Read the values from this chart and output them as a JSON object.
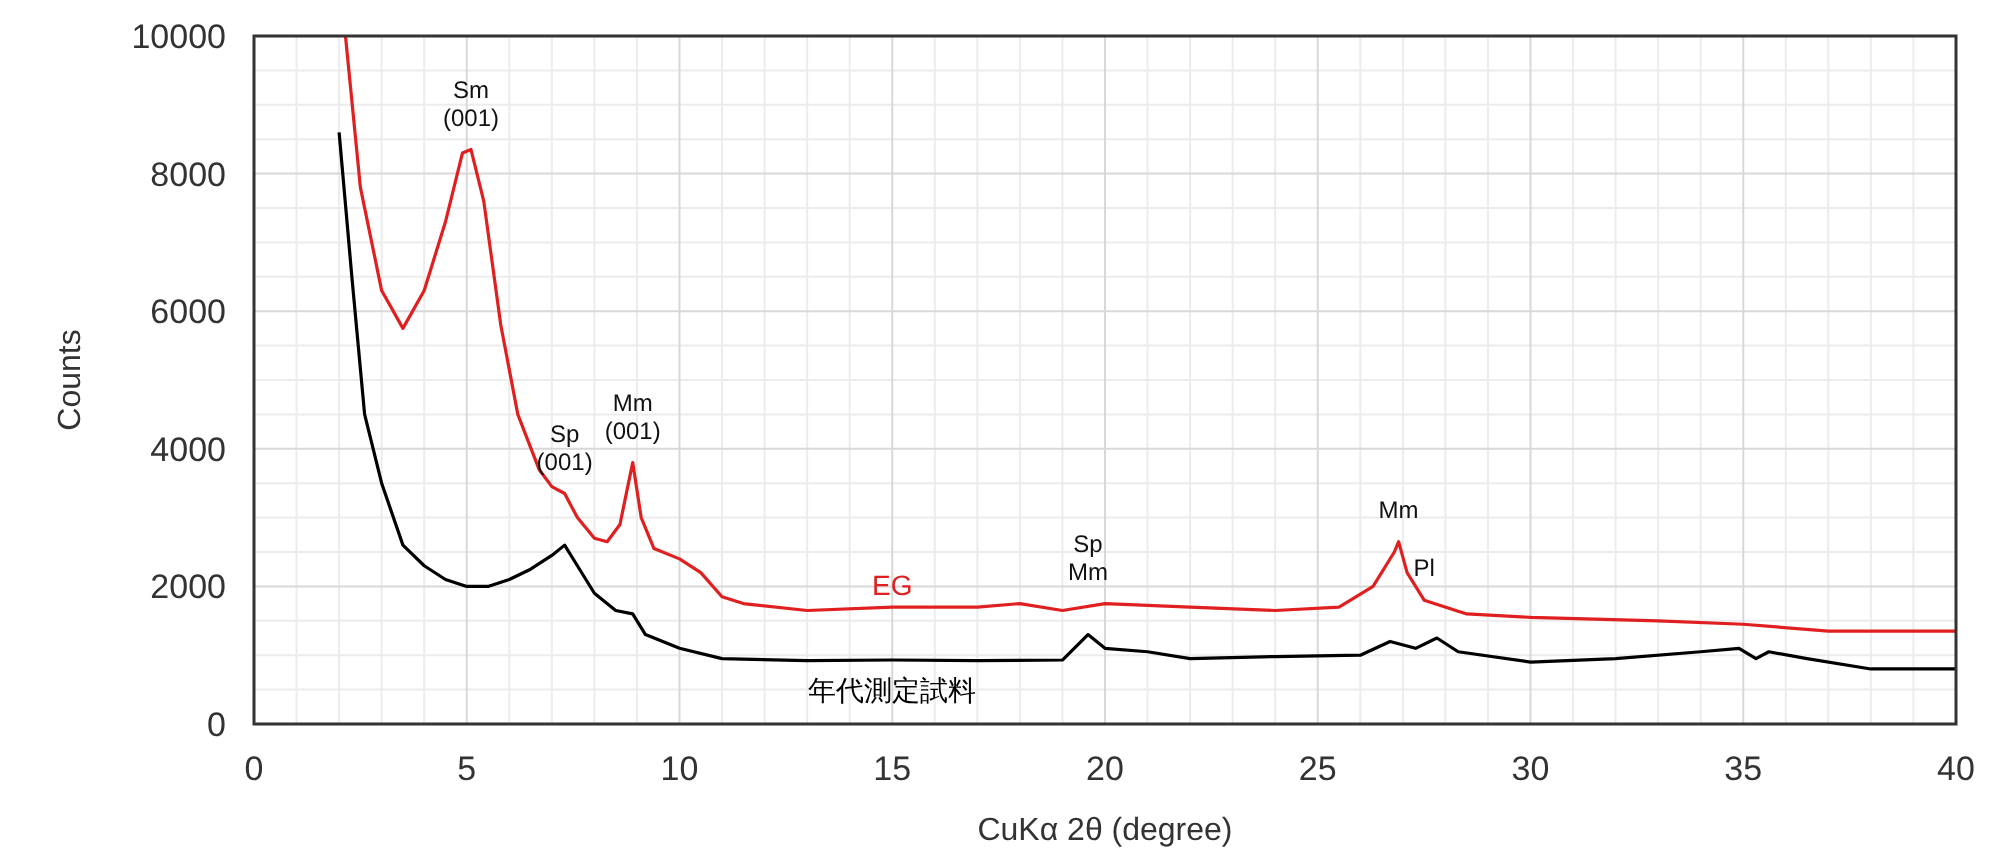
{
  "chart_data": {
    "type": "line",
    "xlabel": "CuKα 2θ (degree)",
    "ylabel": "Counts",
    "xlim": [
      0,
      40
    ],
    "xticks": [
      0,
      5,
      10,
      15,
      20,
      25,
      30,
      35,
      40
    ],
    "ylim": [
      0,
      10000
    ],
    "yticks": [
      0,
      2000,
      4000,
      6000,
      8000,
      10000
    ],
    "grid": true,
    "marker": "none",
    "line_style": "solid",
    "series": [
      {
        "name": "EG",
        "color": "#e02020",
        "x": [
          2.15,
          2.5,
          3.0,
          3.5,
          4.0,
          4.5,
          4.9,
          5.1,
          5.4,
          5.8,
          6.2,
          6.7,
          7.0,
          7.3,
          7.6,
          8.0,
          8.3,
          8.6,
          8.9,
          9.1,
          9.4,
          10,
          10.5,
          11,
          11.5,
          13,
          15,
          17,
          18,
          19,
          20,
          22,
          24,
          25.5,
          26.3,
          26.8,
          26.9,
          27.1,
          27.5,
          28.5,
          30,
          33,
          35,
          37,
          40
        ],
        "values": [
          10000,
          7800,
          6300,
          5750,
          6300,
          7300,
          8300,
          8350,
          7600,
          5800,
          4500,
          3700,
          3450,
          3350,
          3000,
          2700,
          2650,
          2900,
          3800,
          3000,
          2550,
          2400,
          2200,
          1850,
          1750,
          1650,
          1700,
          1700,
          1750,
          1650,
          1750,
          1700,
          1650,
          1700,
          2000,
          2500,
          2650,
          2200,
          1800,
          1600,
          1550,
          1500,
          1450,
          1350,
          1350
        ]
      },
      {
        "name": "年代測定試料",
        "color": "#000000",
        "x": [
          2.0,
          2.3,
          2.6,
          3.0,
          3.5,
          4.0,
          4.5,
          5.0,
          5.5,
          6.0,
          6.5,
          7.0,
          7.3,
          7.6,
          8.0,
          8.5,
          8.9,
          9.2,
          10,
          11,
          13,
          15,
          17,
          19,
          19.6,
          20,
          21,
          22,
          24,
          26,
          26.7,
          27.3,
          27.8,
          28.3,
          30,
          32,
          34,
          34.9,
          35.3,
          35.6,
          36.5,
          38,
          40
        ],
        "values": [
          8600,
          6500,
          4500,
          3500,
          2600,
          2300,
          2100,
          2000,
          2000,
          2100,
          2250,
          2450,
          2600,
          2300,
          1900,
          1650,
          1600,
          1300,
          1100,
          950,
          920,
          930,
          920,
          930,
          1300,
          1100,
          1050,
          950,
          980,
          1000,
          1200,
          1100,
          1250,
          1050,
          900,
          950,
          1050,
          1100,
          950,
          1050,
          950,
          800,
          800
        ]
      }
    ],
    "annotations": [
      {
        "text": "Sm\n(001)",
        "x": 5.1,
        "y": 8350
      },
      {
        "text": "Sp\n(001)",
        "x": 7.3,
        "y": 3350
      },
      {
        "text": "Mm\n(001)",
        "x": 8.9,
        "y": 3800
      },
      {
        "text": "Sp\nMm",
        "x": 19.6,
        "y": 1750
      },
      {
        "text": "Mm",
        "x": 26.9,
        "y": 2650
      },
      {
        "text": "Pl",
        "x": 27.5,
        "y": 1800
      }
    ]
  }
}
